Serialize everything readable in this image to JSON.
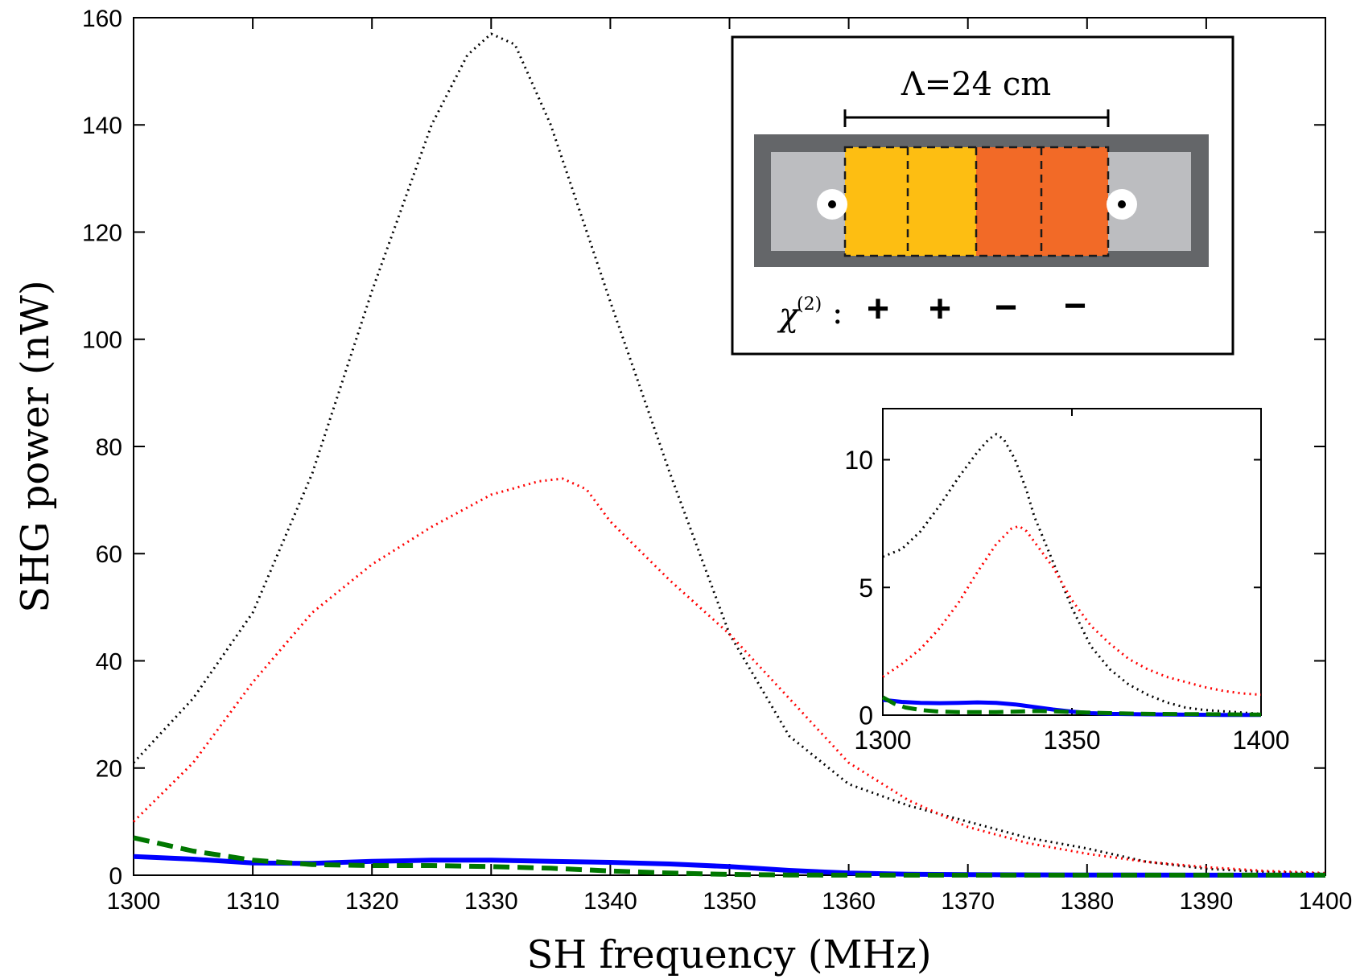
{
  "chart_data": [
    {
      "type": "line",
      "xlabel": "SH frequency (MHz)",
      "ylabel": "SHG power (nW)",
      "xlim": [
        1300,
        1400
      ],
      "ylim": [
        0,
        160
      ],
      "xticks": [
        1300,
        1310,
        1320,
        1330,
        1340,
        1350,
        1360,
        1370,
        1380,
        1390,
        1400
      ],
      "yticks": [
        0,
        20,
        40,
        60,
        80,
        100,
        120,
        140,
        160
      ],
      "series": [
        {
          "name": "black dotted",
          "color": "#000000",
          "style": "dotted",
          "x": [
            1300,
            1305,
            1310,
            1315,
            1320,
            1325,
            1328,
            1330,
            1332,
            1335,
            1340,
            1345,
            1350,
            1355,
            1360,
            1365,
            1370,
            1375,
            1380,
            1385,
            1390,
            1395,
            1400
          ],
          "y": [
            21,
            33,
            49,
            75,
            109,
            140,
            153,
            157,
            155,
            140,
            107,
            75,
            45,
            26,
            17,
            13,
            10,
            7,
            5,
            2.5,
            1.2,
            0.6,
            0.3
          ]
        },
        {
          "name": "red dotted",
          "color": "#ff0000",
          "style": "dotted",
          "x": [
            1300,
            1305,
            1310,
            1315,
            1320,
            1325,
            1330,
            1334,
            1336,
            1338,
            1340,
            1345,
            1350,
            1355,
            1360,
            1365,
            1370,
            1375,
            1380,
            1385,
            1390,
            1395,
            1400
          ],
          "y": [
            10,
            21,
            36,
            49,
            58,
            65,
            71,
            73.5,
            74,
            72,
            66,
            55,
            45,
            33,
            21,
            14,
            9,
            6,
            4,
            2.5,
            1.5,
            0.8,
            0.4
          ]
        },
        {
          "name": "blue solid",
          "color": "#0000ff",
          "style": "solid",
          "x": [
            1300,
            1305,
            1310,
            1315,
            1320,
            1325,
            1330,
            1335,
            1340,
            1345,
            1350,
            1355,
            1360,
            1365,
            1370,
            1380,
            1390,
            1400
          ],
          "y": [
            3.5,
            3.0,
            2.3,
            2.2,
            2.6,
            2.8,
            2.8,
            2.6,
            2.4,
            2.1,
            1.6,
            0.9,
            0.4,
            0.2,
            0.1,
            0.05,
            0.02,
            0.01
          ]
        },
        {
          "name": "green dashed",
          "color": "#007700",
          "style": "dashed",
          "x": [
            1300,
            1305,
            1310,
            1315,
            1320,
            1325,
            1330,
            1335,
            1340,
            1345,
            1350,
            1355,
            1360,
            1370,
            1380,
            1390,
            1400
          ],
          "y": [
            7,
            4.5,
            2.8,
            2.0,
            1.8,
            1.8,
            1.6,
            1.3,
            0.8,
            0.4,
            0.15,
            0.05,
            0.02,
            0.01,
            0.01,
            0.01,
            0.01
          ]
        }
      ]
    },
    {
      "type": "line",
      "placement": "inset right",
      "xlim": [
        1300,
        1400
      ],
      "ylim": [
        0,
        12
      ],
      "xticks": [
        1300,
        1350,
        1400
      ],
      "yticks": [
        0,
        5,
        10
      ],
      "series": [
        {
          "name": "black dotted",
          "color": "#000000",
          "style": "dotted",
          "x": [
            1300,
            1305,
            1310,
            1315,
            1320,
            1325,
            1328,
            1330,
            1332,
            1335,
            1338,
            1340,
            1345,
            1350,
            1355,
            1360,
            1365,
            1370,
            1375,
            1380,
            1385,
            1390,
            1395,
            1400
          ],
          "y": [
            6.2,
            6.5,
            7.2,
            8.2,
            9.3,
            10.3,
            10.8,
            11.0,
            10.8,
            10.0,
            8.8,
            7.8,
            6.0,
            4.2,
            2.7,
            1.8,
            1.2,
            0.8,
            0.5,
            0.3,
            0.2,
            0.15,
            0.1,
            0.05
          ]
        },
        {
          "name": "red dotted",
          "color": "#ff0000",
          "style": "dotted",
          "x": [
            1300,
            1305,
            1310,
            1315,
            1320,
            1325,
            1330,
            1334,
            1336,
            1338,
            1340,
            1345,
            1350,
            1355,
            1360,
            1365,
            1370,
            1375,
            1380,
            1385,
            1390,
            1395,
            1400
          ],
          "y": [
            1.5,
            2.0,
            2.6,
            3.4,
            4.4,
            5.6,
            6.7,
            7.3,
            7.4,
            7.2,
            6.8,
            5.8,
            4.5,
            3.5,
            2.8,
            2.2,
            1.8,
            1.5,
            1.3,
            1.1,
            0.95,
            0.85,
            0.8
          ]
        },
        {
          "name": "blue solid",
          "color": "#0000ff",
          "style": "solid",
          "x": [
            1300,
            1305,
            1310,
            1315,
            1320,
            1325,
            1330,
            1335,
            1340,
            1345,
            1350,
            1355,
            1360,
            1370,
            1380,
            1390,
            1400
          ],
          "y": [
            0.6,
            0.52,
            0.48,
            0.47,
            0.48,
            0.5,
            0.48,
            0.42,
            0.32,
            0.22,
            0.14,
            0.08,
            0.05,
            0.03,
            0.02,
            0.01,
            0.01
          ]
        },
        {
          "name": "green dashed",
          "color": "#007700",
          "style": "dashed",
          "x": [
            1300,
            1303,
            1306,
            1310,
            1315,
            1320,
            1325,
            1330,
            1335,
            1340,
            1345,
            1350,
            1360,
            1370,
            1380,
            1390,
            1400
          ],
          "y": [
            0.7,
            0.45,
            0.3,
            0.2,
            0.14,
            0.12,
            0.12,
            0.12,
            0.14,
            0.16,
            0.15,
            0.12,
            0.08,
            0.05,
            0.04,
            0.03,
            0.02
          ]
        }
      ]
    }
  ],
  "schematic": {
    "period_label": "Λ=24 cm",
    "chi_label": "χ",
    "chi_superscript": "(2)",
    "chi_colon": ":",
    "signs": [
      "+",
      "+",
      "−",
      "−"
    ]
  }
}
